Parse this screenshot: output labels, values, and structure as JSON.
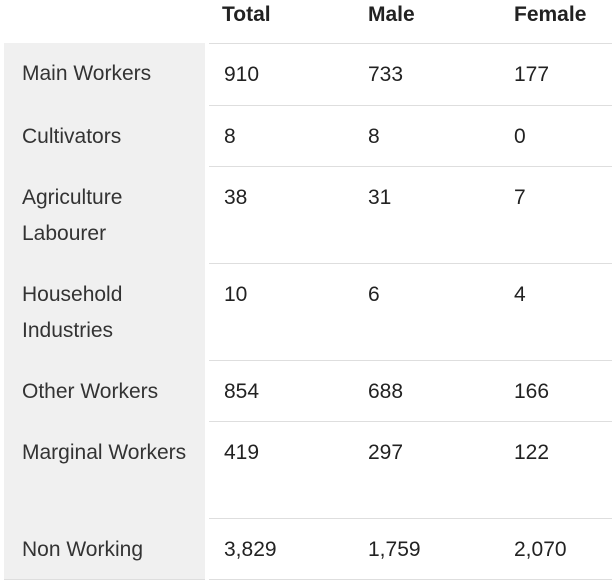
{
  "table": {
    "headers": [
      "",
      "Total",
      "Male",
      "Female"
    ],
    "rows": [
      {
        "label": "Main Workers",
        "total": "910",
        "male": "733",
        "female": "177"
      },
      {
        "label": "Cultivators",
        "total": "8",
        "male": "8",
        "female": "0"
      },
      {
        "label": "Agriculture Labourer",
        "total": "38",
        "male": "31",
        "female": "7"
      },
      {
        "label": "Household Industries",
        "total": "10",
        "male": "6",
        "female": "4"
      },
      {
        "label": "Other Workers",
        "total": "854",
        "male": "688",
        "female": "166"
      },
      {
        "label": "Marginal Workers",
        "total": "419",
        "male": "297",
        "female": "122"
      },
      {
        "label": "Non Working",
        "total": "3,829",
        "male": "1,759",
        "female": "2,070"
      }
    ]
  }
}
